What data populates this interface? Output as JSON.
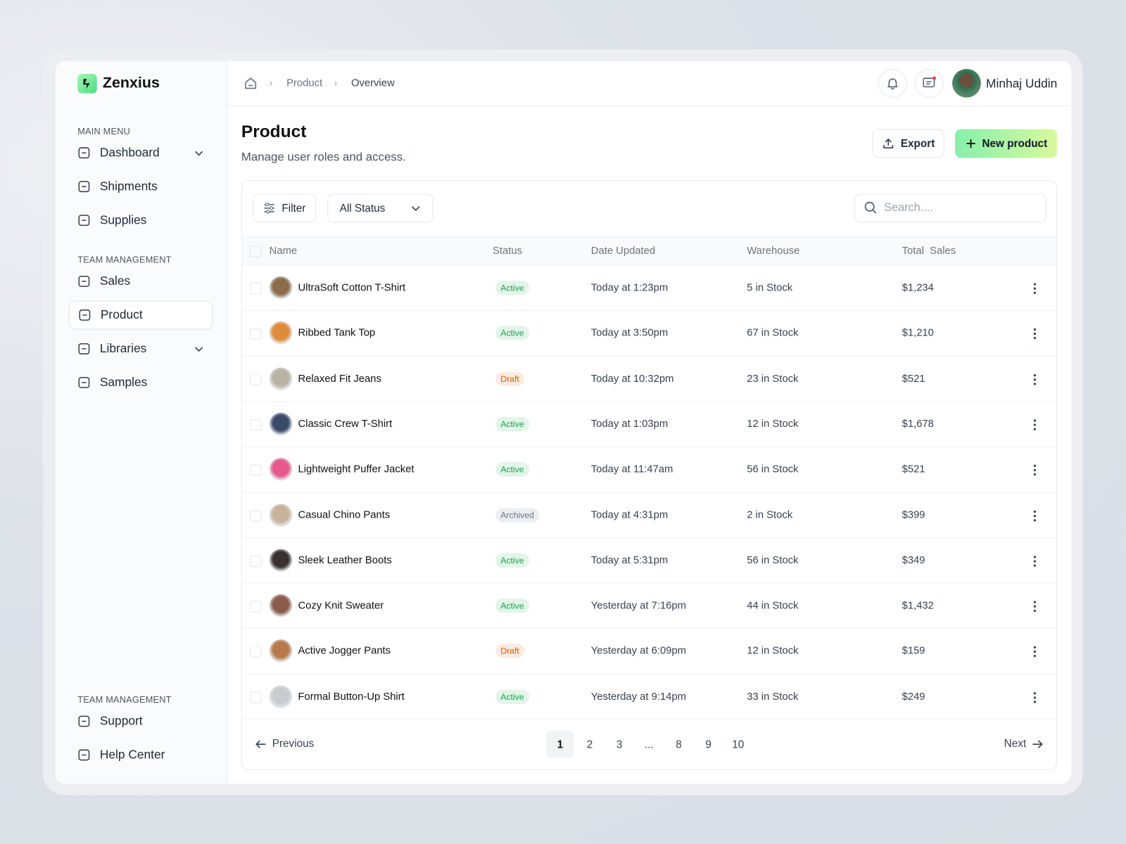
{
  "brand": "Zenxius",
  "sidebar": {
    "sections": [
      {
        "title": "MAIN MENU",
        "items": [
          {
            "label": "Dashboard",
            "chevron": true
          },
          {
            "label": "Shipments"
          },
          {
            "label": "Supplies"
          }
        ]
      },
      {
        "title": "TEAM MANAGEMENT",
        "items": [
          {
            "label": "Sales"
          },
          {
            "label": "Product",
            "active": true
          },
          {
            "label": "Libraries",
            "chevron": true
          },
          {
            "label": "Samples"
          }
        ]
      },
      {
        "title": "TEAM MANAGEMENT",
        "items": [
          {
            "label": "Support"
          },
          {
            "label": "Help Center"
          }
        ]
      }
    ]
  },
  "breadcrumb": [
    "Product",
    "Overview"
  ],
  "user": "Minhaj Uddin",
  "header": {
    "title": "Product",
    "subtitle": "Manage user roles and access."
  },
  "buttons": {
    "export": "Export",
    "new": "New product"
  },
  "toolbar": {
    "filter": "Filter",
    "status": "All Status",
    "search": "Search...."
  },
  "table": {
    "columns": [
      "Name",
      "Status",
      "Date Updated",
      "Warehouse",
      "Total  Sales"
    ],
    "rows": [
      {
        "name": "UltraSoft Cotton T-Shirt",
        "status": "Active",
        "status_color": "#16a34a",
        "date": "Today at 1:23pm",
        "warehouse": "5 in Stock",
        "sales": "$1,234"
      },
      {
        "name": "Ribbed Tank Top",
        "status": "Active",
        "status_color": "#16a34a",
        "date": "Today at 3:50pm",
        "warehouse": "67 in Stock",
        "sales": "$1,210"
      },
      {
        "name": "Relaxed Fit Jeans",
        "status": "Draft",
        "status_color": "#ea580c",
        "date": "Today at 10:32pm",
        "warehouse": "23 in Stock",
        "sales": "$521"
      },
      {
        "name": "Classic Crew T-Shirt",
        "status": "Active",
        "status_color": "#16a34a",
        "date": "Today at 1:03pm",
        "warehouse": "12 in Stock",
        "sales": "$1,678"
      },
      {
        "name": "Lightweight Puffer Jacket",
        "status": "Active",
        "status_color": "#16a34a",
        "date": "Today at 11:47am",
        "warehouse": "56 in Stock",
        "sales": "$521"
      },
      {
        "name": "Casual Chino Pants",
        "status": "Archived",
        "status_color": "#64748b",
        "date": "Today at 4:31pm",
        "warehouse": "2 in Stock",
        "sales": "$399"
      },
      {
        "name": "Sleek Leather Boots",
        "status": "Active",
        "status_color": "#16a34a",
        "date": "Today at 5:31pm",
        "warehouse": "56 in Stock",
        "sales": "$349"
      },
      {
        "name": "Cozy Knit Sweater",
        "status": "Active",
        "status_color": "#16a34a",
        "date": "Yesterday at 7:16pm",
        "warehouse": "44 in Stock",
        "sales": "$1,432"
      },
      {
        "name": "Active Jogger Pants",
        "status": "Draft",
        "status_color": "#ea580c",
        "date": "Yesterday at 6:09pm",
        "warehouse": "12 in Stock",
        "sales": "$159"
      },
      {
        "name": "Formal Button-Up Shirt",
        "status": "Active",
        "status_color": "#16a34a",
        "date": "Yesterday at 9:14pm",
        "warehouse": "33 in Stock",
        "sales": "$249"
      }
    ]
  },
  "pagination": {
    "previous": "Previous",
    "pages": [
      "1",
      "2",
      "3",
      "...",
      "8",
      "9",
      "10"
    ],
    "current": 0,
    "next": "Next"
  }
}
